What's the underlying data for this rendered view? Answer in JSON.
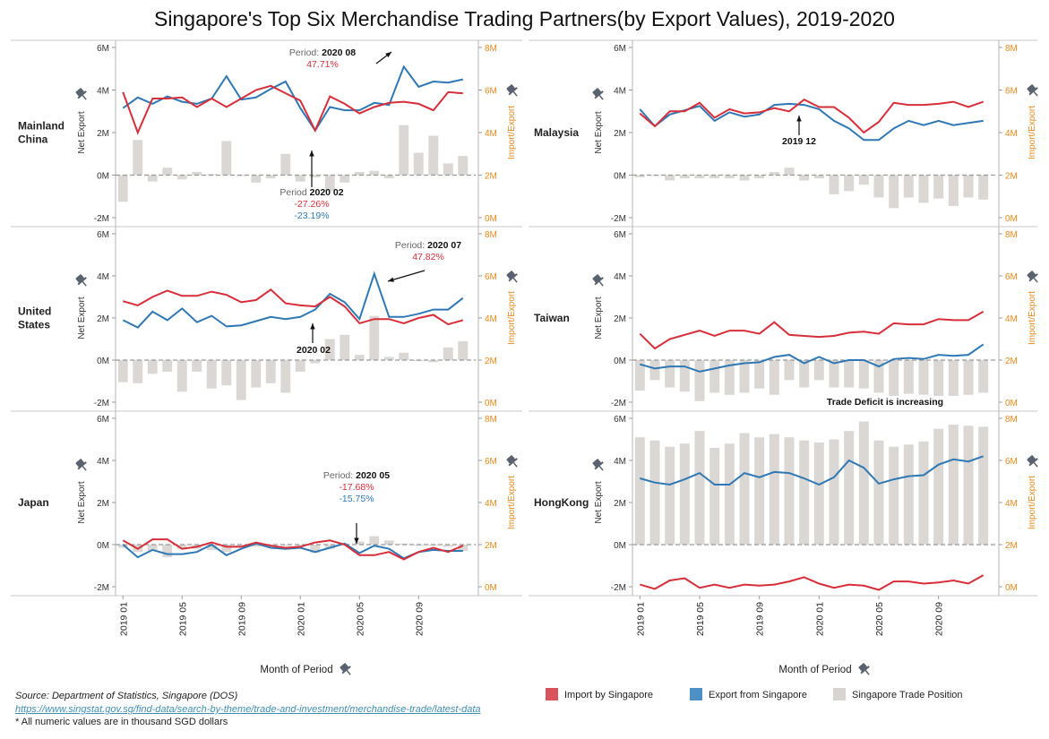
{
  "title": "Singapore's Top Six Merchandise Trading Partners(by Export Values), 2019-2020",
  "chart_data": {
    "type": "line",
    "x": [
      "2019 01",
      "2019 02",
      "2019 03",
      "2019 04",
      "2019 05",
      "2019 06",
      "2019 07",
      "2019 08",
      "2019 09",
      "2019 10",
      "2019 11",
      "2019 12",
      "2020 01",
      "2020 02",
      "2020 03",
      "2020 04",
      "2020 05",
      "2020 06",
      "2020 07",
      "2020 08",
      "2020 09",
      "2020 10",
      "2020 11",
      "2020 12"
    ],
    "x_tick_labels": [
      "2019 01",
      "2019 05",
      "2019 09",
      "2020 01",
      "2020 05",
      "2020 09"
    ],
    "x_axis_label": "Month of Period",
    "left_axis": {
      "label": "Net Export",
      "ticks": [
        "6M",
        "4M",
        "2M",
        "0M",
        "-2M"
      ],
      "range": [
        -2000000,
        6000000
      ]
    },
    "right_axis": {
      "label": "Import/Export",
      "ticks": [
        "8M",
        "6M",
        "4M",
        "2M",
        "0M"
      ],
      "range": [
        0,
        8000000
      ]
    },
    "panels": [
      {
        "name": "Mainland China",
        "label_lines": [
          "Mainland",
          "China"
        ],
        "import": [
          5900000,
          4000000,
          5600000,
          5600000,
          5650000,
          5200000,
          5600000,
          5200000,
          5600000,
          6000000,
          6200000,
          5850000,
          5500000,
          4100000,
          5700000,
          5350000,
          4900000,
          5200000,
          5400000,
          5450000,
          5350000,
          5050000,
          5900000,
          5850000
        ],
        "export": [
          5150000,
          5650000,
          5350000,
          5700000,
          5450000,
          5350000,
          5600000,
          6650000,
          5550000,
          5650000,
          6050000,
          6400000,
          5150000,
          4100000,
          5200000,
          5050000,
          5050000,
          5400000,
          5300000,
          7100000,
          6150000,
          6400000,
          6350000,
          6500000
        ],
        "net": [
          -1250000,
          1650000,
          -300000,
          350000,
          -200000,
          150000,
          50000,
          1600000,
          0,
          -350000,
          -150000,
          1000000,
          -300000,
          -100000,
          -750000,
          -350000,
          150000,
          200000,
          -150000,
          2350000,
          1050000,
          1850000,
          550000,
          900000
        ],
        "annotations": [
          {
            "period_label": "Period:",
            "period": "2020 08",
            "values": [
              "47.71%"
            ]
          },
          {
            "period_label": "Period",
            "period": "2020 02",
            "values": [
              "-27.26%",
              "-23.19%"
            ]
          }
        ]
      },
      {
        "name": "Malaysia",
        "label_lines": [
          "Malaysia"
        ],
        "import": [
          4900000,
          4300000,
          5000000,
          5000000,
          5400000,
          4700000,
          5100000,
          4900000,
          4950000,
          5150000,
          5000000,
          5550000,
          5200000,
          5200000,
          4700000,
          4000000,
          4500000,
          5400000,
          5300000,
          5300000,
          5350000,
          5450000,
          5200000,
          5450000
        ],
        "export": [
          5100000,
          4300000,
          4850000,
          5050000,
          5250000,
          4550000,
          4950000,
          4750000,
          4850000,
          5300000,
          5350000,
          5300000,
          5100000,
          4550000,
          4200000,
          3650000,
          3650000,
          4200000,
          4550000,
          4350000,
          4550000,
          4350000,
          4450000,
          4550000
        ],
        "net": [
          -100000,
          0,
          -250000,
          -150000,
          -150000,
          -150000,
          -150000,
          -250000,
          -150000,
          150000,
          350000,
          -250000,
          -150000,
          -900000,
          -750000,
          -450000,
          -1050000,
          -1550000,
          -1050000,
          -1300000,
          -1100000,
          -1450000,
          -1050000,
          -1150000
        ],
        "annotations": [
          {
            "period_label": "",
            "period": "2019 12",
            "values": []
          }
        ]
      },
      {
        "name": "United States",
        "label_lines": [
          "United",
          "States"
        ],
        "import": [
          4800000,
          4600000,
          5000000,
          5300000,
          5050000,
          5050000,
          5250000,
          5100000,
          4750000,
          4850000,
          5350000,
          4700000,
          4600000,
          4550000,
          5000000,
          4550000,
          3750000,
          3950000,
          3950000,
          3750000,
          4000000,
          4150000,
          3700000,
          3900000
        ],
        "export": [
          3900000,
          3550000,
          4300000,
          3900000,
          4450000,
          3800000,
          4100000,
          3600000,
          3650000,
          3850000,
          4050000,
          3950000,
          4050000,
          4400000,
          5150000,
          4750000,
          3950000,
          6100000,
          4050000,
          4050000,
          4200000,
          4400000,
          4400000,
          4950000
        ],
        "net": [
          -1050000,
          -1100000,
          -650000,
          -550000,
          -1500000,
          -550000,
          -1350000,
          -1200000,
          -1900000,
          -1300000,
          -1100000,
          -1550000,
          -550000,
          -150000,
          1000000,
          1200000,
          250000,
          2100000,
          150000,
          350000,
          -50000,
          -100000,
          600000,
          900000
        ],
        "annotations": [
          {
            "period_label": "Period:",
            "period": "2020 07",
            "values": [
              "47.82%"
            ]
          },
          {
            "period_label": "",
            "period": "2020 02",
            "values": []
          }
        ]
      },
      {
        "name": "Taiwan",
        "label_lines": [
          "Taiwan"
        ],
        "import": [
          3250000,
          2550000,
          3000000,
          3200000,
          3400000,
          3150000,
          3400000,
          3400000,
          3250000,
          3800000,
          3200000,
          3150000,
          3100000,
          3150000,
          3300000,
          3350000,
          3250000,
          3750000,
          3700000,
          3700000,
          3950000,
          3900000,
          3900000,
          4300000
        ],
        "export": [
          1800000,
          1600000,
          1700000,
          1700000,
          1450000,
          1600000,
          1750000,
          1850000,
          1900000,
          2150000,
          2250000,
          1850000,
          2150000,
          1850000,
          2000000,
          2000000,
          1700000,
          2050000,
          2100000,
          2050000,
          2250000,
          2200000,
          2250000,
          2750000
        ],
        "net": [
          -1450000,
          -950000,
          -1300000,
          -1500000,
          -1950000,
          -1550000,
          -1650000,
          -1550000,
          -1350000,
          -1650000,
          -950000,
          -1300000,
          -950000,
          -1300000,
          -1300000,
          -1350000,
          -1550000,
          -1700000,
          -1600000,
          -1650000,
          -1700000,
          -1700000,
          -1650000,
          -1550000
        ],
        "annotations": [
          {
            "period_label": "",
            "period": "Trade Deficit is increasing",
            "values": []
          }
        ]
      },
      {
        "name": "Japan",
        "label_lines": [
          "Japan"
        ],
        "import": [
          2200000,
          1800000,
          2250000,
          2250000,
          1800000,
          1900000,
          2100000,
          1900000,
          1900000,
          2100000,
          1950000,
          1850000,
          1900000,
          2100000,
          2200000,
          2000000,
          1500000,
          1500000,
          1650000,
          1300000,
          1650000,
          1850000,
          1650000,
          1950000
        ],
        "export": [
          2000000,
          1400000,
          1750000,
          1550000,
          1550000,
          1650000,
          2000000,
          1500000,
          1800000,
          2050000,
          1850000,
          1800000,
          1850000,
          1650000,
          1850000,
          2050000,
          1600000,
          1950000,
          1800000,
          1350000,
          1650000,
          1750000,
          1700000,
          1700000
        ],
        "net": [
          -150000,
          -350000,
          -300000,
          -600000,
          -200000,
          -200000,
          -250000,
          -350000,
          -50000,
          -100000,
          -50000,
          -50000,
          -50000,
          -400000,
          -200000,
          50000,
          150000,
          400000,
          200000,
          50000,
          -50000,
          -50000,
          -100000,
          -300000
        ],
        "annotations": [
          {
            "period_label": "Period:",
            "period": "2020 05",
            "values": [
              "-17.68%",
              "-15.75%"
            ]
          }
        ]
      },
      {
        "name": "HongKong",
        "label_lines": [
          "HongKong"
        ],
        "import": [
          100000,
          -100000,
          300000,
          400000,
          -50000,
          100000,
          -50000,
          100000,
          50000,
          100000,
          250000,
          450000,
          150000,
          -50000,
          100000,
          50000,
          -150000,
          250000,
          250000,
          150000,
          200000,
          300000,
          150000,
          550000
        ],
        "export": [
          5150000,
          4950000,
          4850000,
          5100000,
          5400000,
          4850000,
          4850000,
          5400000,
          5200000,
          5450000,
          5400000,
          5150000,
          4850000,
          5200000,
          6000000,
          5650000,
          4900000,
          5100000,
          5250000,
          5300000,
          5800000,
          6050000,
          5950000,
          6200000
        ],
        "net": [
          5100000,
          4950000,
          4650000,
          4800000,
          5400000,
          4600000,
          4800000,
          5300000,
          5100000,
          5250000,
          5100000,
          4950000,
          4850000,
          5000000,
          5400000,
          5850000,
          4950000,
          4650000,
          4750000,
          4900000,
          5500000,
          5700000,
          5650000,
          5600000
        ],
        "annotations": []
      }
    ],
    "legend": [
      {
        "name": "Import by Singapore",
        "color": "#d62f3a"
      },
      {
        "name": "Export from Singapore",
        "color": "#2f78b4"
      },
      {
        "name": "Singapore Trade Position",
        "color": "#d8d4d2"
      }
    ],
    "colors": {
      "import": "#d62f3a",
      "export": "#2f78b4",
      "net": "#dbd7d5",
      "right_axis": "#e8891c",
      "annotation_red": "#d62f3a",
      "annotation_blue": "#2f78b4"
    }
  },
  "footer": {
    "source_label": "Source:",
    "source_text": "Department of Statistics, Singapore (DOS)",
    "url": "https://www.singstat.gov.sg/find-data/search-by-theme/trade-and-investment/merchandise-trade/latest-data",
    "note": "* All numeric values are in thousand SGD dollars"
  },
  "icons": {
    "pin": "pin-icon"
  }
}
